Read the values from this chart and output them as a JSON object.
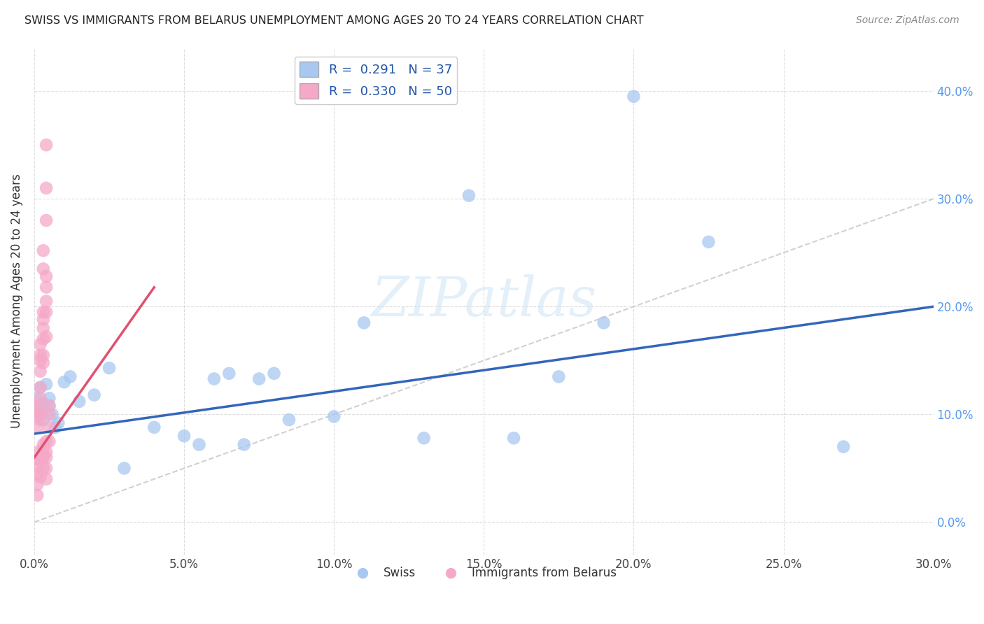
{
  "title": "SWISS VS IMMIGRANTS FROM BELARUS UNEMPLOYMENT AMONG AGES 20 TO 24 YEARS CORRELATION CHART",
  "source": "Source: ZipAtlas.com",
  "ylabel": "Unemployment Among Ages 20 to 24 years",
  "watermark": "ZIPatlas",
  "legend_R_swiss": "0.291",
  "legend_N_swiss": "37",
  "legend_R_belarus": "0.330",
  "legend_N_belarus": "50",
  "xlim": [
    0.0,
    0.3
  ],
  "ylim": [
    -0.03,
    0.44
  ],
  "xticks": [
    0.0,
    0.05,
    0.1,
    0.15,
    0.2,
    0.25,
    0.3
  ],
  "yticks": [
    0.0,
    0.1,
    0.2,
    0.3,
    0.4
  ],
  "swiss_color": "#a8c8f0",
  "belarus_color": "#f5a8c8",
  "swiss_line_color": "#3366bb",
  "belarus_line_color": "#e05070",
  "ref_line_color": "#cccccc",
  "swiss_x": [
    0.001,
    0.001,
    0.002,
    0.002,
    0.003,
    0.003,
    0.004,
    0.005,
    0.005,
    0.006,
    0.007,
    0.008,
    0.01,
    0.012,
    0.015,
    0.02,
    0.025,
    0.03,
    0.04,
    0.05,
    0.055,
    0.06,
    0.065,
    0.07,
    0.075,
    0.08,
    0.085,
    0.1,
    0.11,
    0.13,
    0.145,
    0.16,
    0.175,
    0.19,
    0.2,
    0.225,
    0.27
  ],
  "swiss_y": [
    0.105,
    0.115,
    0.1,
    0.125,
    0.095,
    0.11,
    0.128,
    0.108,
    0.115,
    0.1,
    0.088,
    0.092,
    0.13,
    0.135,
    0.112,
    0.118,
    0.143,
    0.05,
    0.088,
    0.08,
    0.072,
    0.133,
    0.138,
    0.072,
    0.133,
    0.138,
    0.095,
    0.098,
    0.185,
    0.078,
    0.303,
    0.078,
    0.135,
    0.185,
    0.395,
    0.26,
    0.07
  ],
  "belarus_x": [
    0.001,
    0.001,
    0.001,
    0.001,
    0.001,
    0.001,
    0.001,
    0.001,
    0.001,
    0.001,
    0.002,
    0.002,
    0.002,
    0.002,
    0.002,
    0.002,
    0.002,
    0.002,
    0.002,
    0.002,
    0.003,
    0.003,
    0.003,
    0.003,
    0.003,
    0.003,
    0.003,
    0.003,
    0.003,
    0.003,
    0.003,
    0.003,
    0.003,
    0.004,
    0.004,
    0.004,
    0.004,
    0.004,
    0.004,
    0.004,
    0.004,
    0.004,
    0.004,
    0.004,
    0.004,
    0.004,
    0.005,
    0.005,
    0.005,
    0.005
  ],
  "belarus_y": [
    0.098,
    0.102,
    0.108,
    0.088,
    0.058,
    0.052,
    0.065,
    0.045,
    0.035,
    0.025,
    0.095,
    0.1,
    0.115,
    0.125,
    0.14,
    0.15,
    0.155,
    0.165,
    0.058,
    0.042,
    0.148,
    0.155,
    0.17,
    0.18,
    0.188,
    0.195,
    0.235,
    0.252,
    0.06,
    0.062,
    0.072,
    0.068,
    0.05,
    0.195,
    0.205,
    0.218,
    0.228,
    0.06,
    0.05,
    0.04,
    0.065,
    0.075,
    0.31,
    0.35,
    0.28,
    0.172,
    0.1,
    0.108,
    0.088,
    0.075
  ]
}
